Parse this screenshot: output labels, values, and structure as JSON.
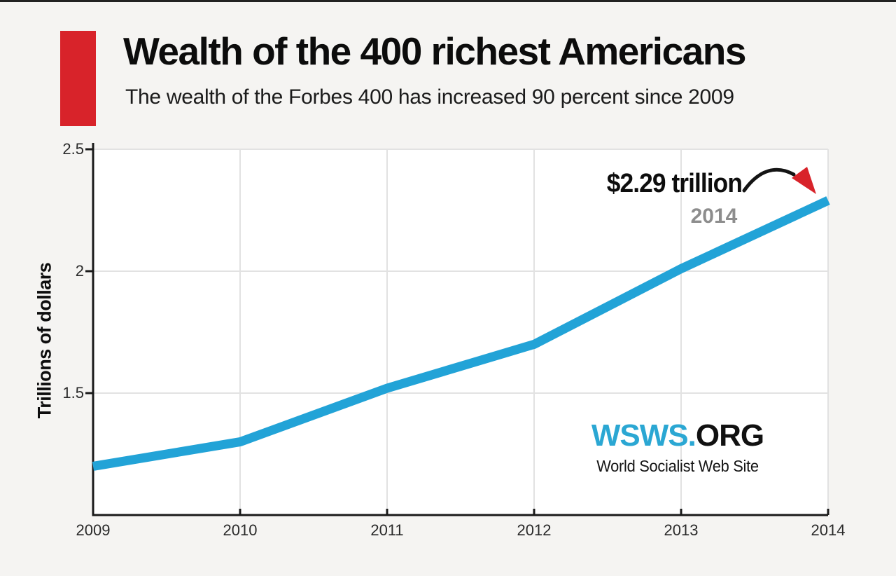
{
  "page": {
    "background_color": "#f5f4f2",
    "top_strip_color": "#222222"
  },
  "header": {
    "title": "Wealth of the 400 richest Americans",
    "subtitle": "The wealth of the Forbes 400 has increased 90 percent since 2009",
    "accent_color": "#d8232a"
  },
  "chart_data": {
    "type": "line",
    "title": "Wealth of the 400 richest Americans",
    "xlabel": "",
    "ylabel": "Trillions of dollars",
    "categories": [
      "2009",
      "2010",
      "2011",
      "2012",
      "2013",
      "2014"
    ],
    "values": [
      1.2,
      1.3,
      1.52,
      1.7,
      2.01,
      2.29
    ],
    "ylim": [
      1.0,
      2.5
    ],
    "yticks": [
      1.5,
      2,
      2.5
    ],
    "grid": true,
    "legend": "none",
    "plot_background": "#ffffff",
    "grid_color": "#e2e2e2",
    "axis_color": "#1a1a1a",
    "line_color": "#22a3d7",
    "tick_label_color": "#2a2a2a",
    "annotation": {
      "label": "$2.29 trillion",
      "sublabel": "2014",
      "sublabel_color": "#8d8d8d",
      "arrow_color": "#d8232a"
    }
  },
  "branding": {
    "logo_primary": "WSWS.",
    "logo_secondary": "ORG",
    "logo_primary_color": "#2ba7d3",
    "logo_secondary_color": "#111111",
    "tagline": "World Socialist Web Site"
  }
}
